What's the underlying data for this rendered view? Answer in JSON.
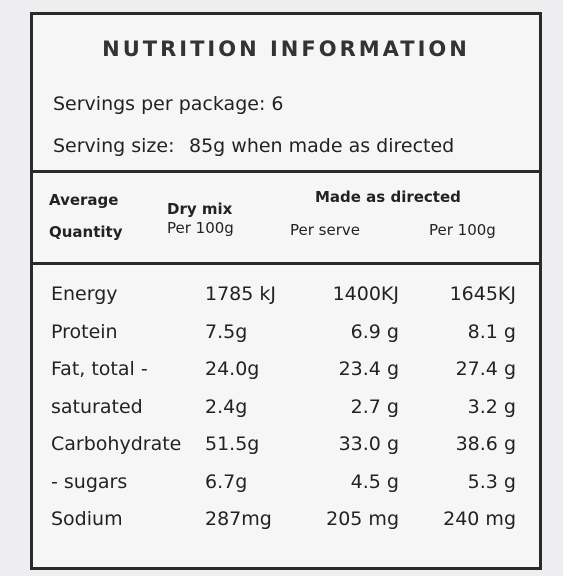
{
  "title": "NUTRITION INFORMATION",
  "servings": "Servings per package: 6",
  "serving_size": {
    "label": "Serving size:",
    "value": "85g when made as directed"
  },
  "header": {
    "average": [
      "Average",
      "Quantity"
    ],
    "dry_mix": "Dry mix",
    "dry_mix_unit": "Per 100g",
    "made_as_directed": "Made as directed",
    "per_serve": "Per serve",
    "per_100g": "Per 100g"
  },
  "rows": [
    [
      "Energy",
      "1785 kJ",
      "1400KJ",
      "1645KJ"
    ],
    [
      "Protein",
      "7.5g",
      "6.9 g",
      "8.1 g"
    ],
    [
      "Fat, total -",
      "24.0g",
      "23.4 g",
      "27.4 g"
    ],
    [
      "saturated",
      "2.4g",
      "2.7 g",
      "3.2 g"
    ],
    [
      "Carbohydrate",
      "51.5g",
      "33.0 g",
      "38.6 g"
    ],
    [
      "- sugars",
      "6.7g",
      "4.5 g",
      "5.3 g"
    ],
    [
      "Sodium",
      "287mg",
      "205 mg",
      "240 mg"
    ]
  ]
}
